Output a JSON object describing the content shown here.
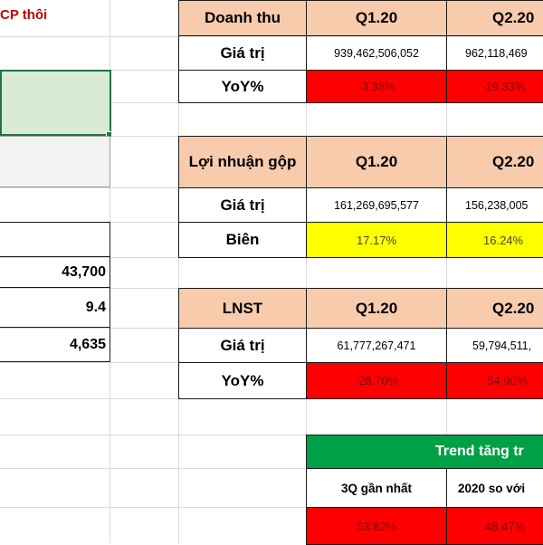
{
  "left_panel": {
    "note": "CP thôi",
    "values": [
      "43,700",
      "9.4",
      "4,635"
    ]
  },
  "revenue_table": {
    "header": [
      "Doanh thu",
      "Q1.20",
      "Q2.20"
    ],
    "rows": [
      {
        "label": "Giá trị",
        "values": [
          "939,462,506,052",
          "962,118,469"
        ]
      },
      {
        "label": "YoY%",
        "values": [
          "-3.38%",
          "-19.33%"
        ]
      }
    ]
  },
  "gross_profit_table": {
    "header": [
      "Lợi nhuận gộp",
      "Q1.20",
      "Q2.20"
    ],
    "rows": [
      {
        "label": "Giá trị",
        "values": [
          "161,269,695,577",
          "156,238,005"
        ]
      },
      {
        "label": "Biên",
        "values": [
          "17.17%",
          "16.24%"
        ]
      }
    ]
  },
  "net_profit_table": {
    "header": [
      "LNST",
      "Q1.20",
      "Q2.20"
    ],
    "rows": [
      {
        "label": "Giá trị",
        "values": [
          "61,777,267,471",
          "59,794,511,"
        ]
      },
      {
        "label": "YoY%",
        "values": [
          "-28.70%",
          "-54.90%"
        ]
      }
    ]
  },
  "trend_table": {
    "title": "Trend tăng tr",
    "headers": [
      "3Q gần nhất",
      "2020 so với"
    ],
    "values": [
      "53.82%",
      "48.47%"
    ]
  },
  "colors": {
    "header_peach": "#f8cbad",
    "negative_red": "#ff0000",
    "highlight_yellow": "#ffff00",
    "trend_green": "#00a046",
    "selection_green": "#217346",
    "note_red": "#c00000"
  }
}
